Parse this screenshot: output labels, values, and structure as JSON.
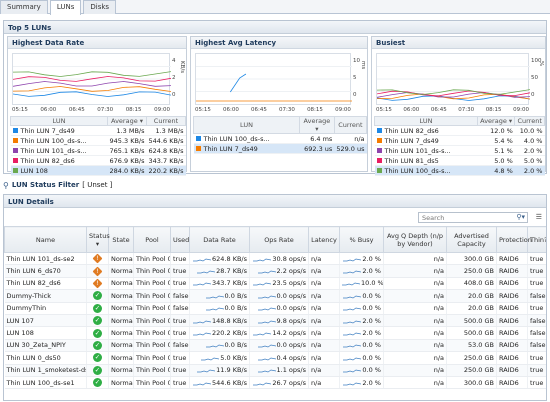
{
  "tabs": [
    "Summary",
    "LUNs",
    "Disks"
  ],
  "top5": {
    "title": "Top 5 LUNs",
    "cards": [
      {
        "title": "Highest Data Rate",
        "axis_unit": "KB/s",
        "yticks": [
          "4",
          "2",
          "0"
        ],
        "xticks": [
          "05:15",
          "06:00",
          "06:45",
          "07:30",
          "08:15",
          "09:00"
        ],
        "headers": [
          "LUN",
          "Average",
          "Current"
        ],
        "rows": [
          {
            "name": "Thin LUN 7_ds49",
            "avg": "1.3 MB/s",
            "cur": "1.3 MB/s",
            "color": "#1e88e5"
          },
          {
            "name": "Thin LUN 100_ds-s...",
            "avg": "945.3 KB/s",
            "cur": "544.6 KB/s",
            "color": "#f57c00"
          },
          {
            "name": "Thin LUN 101_ds-s...",
            "avg": "765.1 KB/s",
            "cur": "624.8 KB/s",
            "color": "#8e44ad"
          },
          {
            "name": "Thin LUN 82_ds6",
            "avg": "676.9 KB/s",
            "cur": "343.7 KB/s",
            "color": "#e91e63"
          },
          {
            "name": "LUN 108",
            "avg": "284.0 KB/s",
            "cur": "220.2 KB/s",
            "color": "#6aa84f"
          }
        ]
      },
      {
        "title": "Highest Avg Latency",
        "axis_unit": "ms",
        "yticks": [
          "10",
          "5",
          "0"
        ],
        "xticks": [
          "05:15",
          "06:00",
          "06:45",
          "07:30",
          "08:15",
          "09:00"
        ],
        "headers": [
          "LUN",
          "Average",
          "Current"
        ],
        "rows": [
          {
            "name": "Thin LUN 100_ds-s...",
            "avg": "6.4 ms",
            "cur": "n/a",
            "color": "#1e88e5"
          },
          {
            "name": "Thin LUN 7_ds49",
            "avg": "692.3 us",
            "cur": "529.0 us",
            "color": "#f57c00"
          }
        ]
      },
      {
        "title": "Busiest",
        "axis_unit": "%",
        "yticks": [
          "100",
          "50",
          "0"
        ],
        "xticks": [
          "05:15",
          "06:00",
          "06:45",
          "07:30",
          "08:15",
          "09:00"
        ],
        "headers": [
          "LUN",
          "Average",
          "Current"
        ],
        "rows": [
          {
            "name": "Thin LUN 82_ds6",
            "avg": "12.0 %",
            "cur": "10.0 %",
            "color": "#1e88e5"
          },
          {
            "name": "Thin LUN 7_ds49",
            "avg": "5.4 %",
            "cur": "4.0 %",
            "color": "#f57c00"
          },
          {
            "name": "Thin LUN 101_ds-s...",
            "avg": "5.1 %",
            "cur": "2.0 %",
            "color": "#8e44ad"
          },
          {
            "name": "Thin LUN 81_ds5",
            "avg": "5.0 %",
            "cur": "5.0 %",
            "color": "#e91e63"
          },
          {
            "name": "Thin LUN 100_ds-s...",
            "avg": "4.8 %",
            "cur": "2.0 %",
            "color": "#6aa84f"
          }
        ]
      }
    ]
  },
  "filter": {
    "label": "LUN Status Filter",
    "value": "[ Unset ]"
  },
  "details": {
    "title": "LUN Details",
    "search_placeholder": "Search",
    "columns": [
      "Name",
      "Status",
      "State",
      "Pool",
      "Used",
      "Data Rate",
      "Ops Rate",
      "Latency",
      "% Busy",
      "Avg Q Depth (n/p by Vendor)",
      "Advertised Capacity",
      "Protection",
      "Thin?"
    ],
    "rows": [
      {
        "name": "Thin LUN 101_ds-se2",
        "status": "warn",
        "state": "Normal",
        "pool": "Thin Pool 0",
        "used": "true",
        "rate": "624.8 KB/s",
        "ops": "30.8 ops/s",
        "lat": "n/a",
        "busy": "2.0 %",
        "q": "n/a",
        "cap": "300.0 GB",
        "prot": "RAID6",
        "thin": "true"
      },
      {
        "name": "Thin LUN 6_ds70",
        "status": "warn",
        "state": "Normal",
        "pool": "Thin Pool 0",
        "used": "true",
        "rate": "28.7 KB/s",
        "ops": "2.2 ops/s",
        "lat": "n/a",
        "busy": "2.0 %",
        "q": "n/a",
        "cap": "250.0 GB",
        "prot": "RAID6",
        "thin": "true"
      },
      {
        "name": "Thin LUN 82_ds6",
        "status": "warn",
        "state": "Normal",
        "pool": "Thin Pool 0",
        "used": "true",
        "rate": "343.7 KB/s",
        "ops": "23.5 ops/s",
        "lat": "n/a",
        "busy": "10.0 %",
        "q": "n/a",
        "cap": "408.0 GB",
        "prot": "RAID6",
        "thin": "true"
      },
      {
        "name": "Dummy-Thick",
        "status": "ok",
        "state": "Normal",
        "pool": "Thin Pool 0",
        "used": "false",
        "rate": "0.0 B/s",
        "ops": "0.0 ops/s",
        "lat": "n/a",
        "busy": "0.0 %",
        "q": "n/a",
        "cap": "20.0 GB",
        "prot": "RAID6",
        "thin": "false"
      },
      {
        "name": "DummyThin",
        "status": "ok",
        "state": "Normal",
        "pool": "Thin Pool 0",
        "used": "false",
        "rate": "0.0 B/s",
        "ops": "0.0 ops/s",
        "lat": "n/a",
        "busy": "0.0 %",
        "q": "n/a",
        "cap": "20.0 GB",
        "prot": "RAID6",
        "thin": "true"
      },
      {
        "name": "LUN 107",
        "status": "ok",
        "state": "Normal",
        "pool": "Thin Pool 0",
        "used": "true",
        "rate": "148.8 KB/s",
        "ops": "9.8 ops/s",
        "lat": "n/a",
        "busy": "2.0 %",
        "q": "n/a",
        "cap": "500.0 GB",
        "prot": "RAID6",
        "thin": "false"
      },
      {
        "name": "LUN 108",
        "status": "ok",
        "state": "Normal",
        "pool": "Thin Pool 0",
        "used": "true",
        "rate": "220.2 KB/s",
        "ops": "14.2 ops/s",
        "lat": "n/a",
        "busy": "2.0 %",
        "q": "n/a",
        "cap": "500.0 GB",
        "prot": "RAID6",
        "thin": "false"
      },
      {
        "name": "LUN 30_Zeta_NPIY",
        "status": "ok",
        "state": "Normal",
        "pool": "Thin Pool 0",
        "used": "false",
        "rate": "0.0 B/s",
        "ops": "0.0 ops/s",
        "lat": "n/a",
        "busy": "0.0 %",
        "q": "n/a",
        "cap": "53.0 GB",
        "prot": "RAID6",
        "thin": "false"
      },
      {
        "name": "Thin LUN 0_ds50",
        "status": "ok",
        "state": "Normal",
        "pool": "Thin Pool 0",
        "used": "true",
        "rate": "5.0 KB/s",
        "ops": "0.4 ops/s",
        "lat": "n/a",
        "busy": "0.0 %",
        "q": "n/a",
        "cap": "250.0 GB",
        "prot": "RAID6",
        "thin": "true"
      },
      {
        "name": "Thin LUN 1_smoketest-ds",
        "status": "ok",
        "state": "Normal",
        "pool": "Thin Pool 0",
        "used": "true",
        "rate": "11.9 KB/s",
        "ops": "1.1 ops/s",
        "lat": "n/a",
        "busy": "0.0 %",
        "q": "n/a",
        "cap": "250.0 GB",
        "prot": "RAID6",
        "thin": "true"
      },
      {
        "name": "Thin LUN 100_ds-se1",
        "status": "ok",
        "state": "Normal",
        "pool": "Thin Pool 0",
        "used": "true",
        "rate": "544.6 KB/s",
        "ops": "26.7 ops/s",
        "lat": "n/a",
        "busy": "2.0 %",
        "q": "n/a",
        "cap": "300.0 GB",
        "prot": "RAID6",
        "thin": "true"
      }
    ]
  }
}
